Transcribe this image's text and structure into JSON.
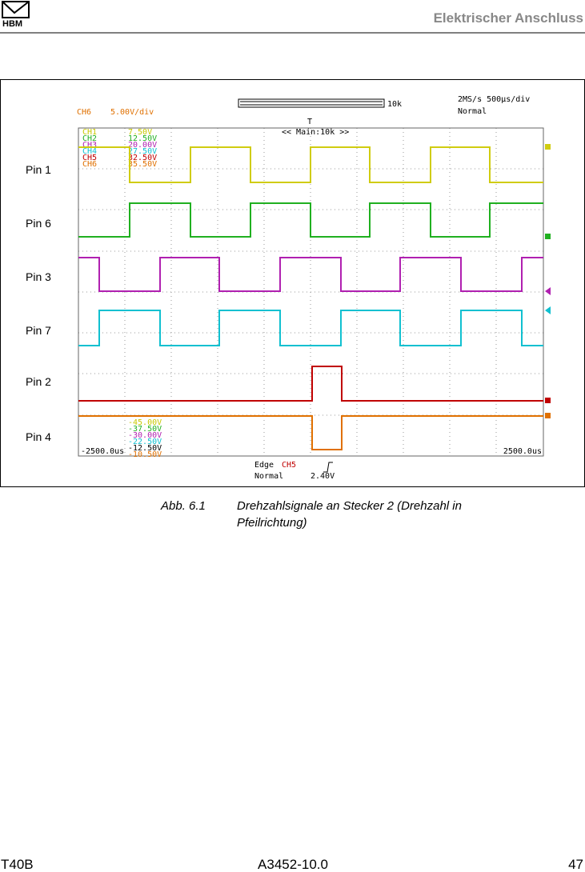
{
  "header": {
    "logo": "HBM",
    "title": "Elektrischer Anschluss"
  },
  "scope": {
    "channel": "CH6",
    "scale": "5.00V/div",
    "memory": "10k",
    "timebase": "2MS/s 500µs/div",
    "mode": "Normal",
    "trigger_marker": "T",
    "zoom": "<< Main:10k >>",
    "channel_list": [
      "CH1",
      "CH2",
      "CH3",
      "CH4",
      "CH5",
      "CH6"
    ],
    "offsets": [
      "7.50V",
      "12.50V",
      "20.00V",
      "27.50V",
      "32.50V",
      "35.50V"
    ],
    "lower_offsets": [
      "-45.00V",
      "-37.50V",
      "-30.00V",
      "-22.50V",
      "-12.50V",
      "-10.50V"
    ],
    "x_start": "-2500.0us",
    "x_end": "2500.0us",
    "trigger": {
      "type": "Edge",
      "source": "CH5",
      "mode": "Normal",
      "level": "2.40V"
    },
    "pins": [
      "Pin 1",
      "Pin 6",
      "Pin 3",
      "Pin 7",
      "Pin 2",
      "Pin 4"
    ]
  },
  "caption": {
    "number": "Abb. 6.1",
    "text": "Drehzahlsignale an Stecker 2 (Drehzahl in",
    "text_line2": "Pfeilrichtung)"
  },
  "footer": {
    "product": "T40B",
    "doc": "A3452-10.0",
    "page": "47"
  }
}
